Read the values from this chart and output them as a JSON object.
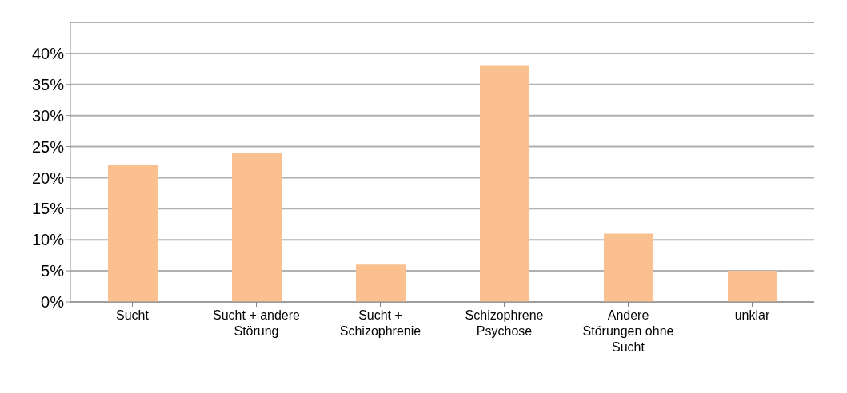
{
  "chart_data": {
    "type": "bar",
    "categories": [
      "Sucht",
      "Sucht + andere Störung",
      "Sucht + Schizophrenie",
      "Schizophrene Psychose",
      "Andere Störungen ohne Sucht",
      "unklar"
    ],
    "values": [
      22,
      24,
      6,
      38,
      11,
      5
    ],
    "color": "#fac090",
    "ylim": [
      0,
      45
    ],
    "yticks": [
      {
        "value": 0,
        "label": "0%"
      },
      {
        "value": 5,
        "label": "5%"
      },
      {
        "value": 10,
        "label": "10%"
      },
      {
        "value": 15,
        "label": "15%"
      },
      {
        "value": 20,
        "label": "20%"
      },
      {
        "value": 25,
        "label": "25%"
      },
      {
        "value": 30,
        "label": "30%"
      },
      {
        "value": 35,
        "label": "35%"
      },
      {
        "value": 40,
        "label": "40%"
      }
    ],
    "grid": "y"
  }
}
